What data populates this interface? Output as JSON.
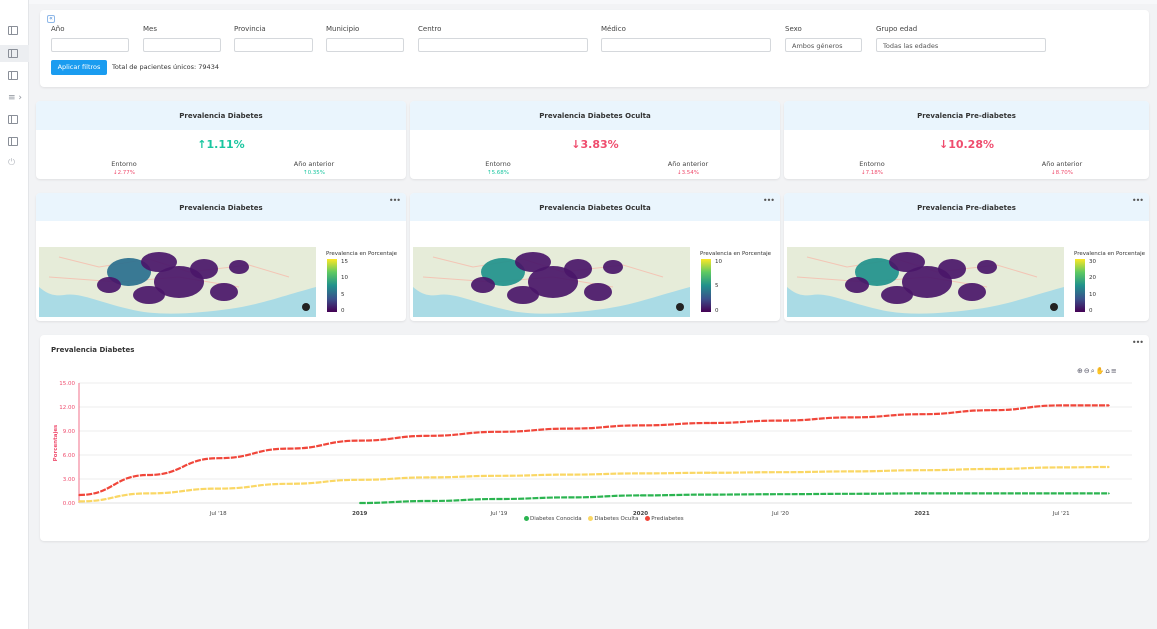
{
  "filters": {
    "anio_label": "Año",
    "mes_label": "Mes",
    "provincia_label": "Provincia",
    "municipio_label": "Municipio",
    "centro_label": "Centro",
    "medico_label": "Médico",
    "sexo_label": "Sexo",
    "sexo_value": "Ambos géneros",
    "grupo_label": "Grupo edad",
    "grupo_value": "Todas las edades",
    "apply_label": "Aplicar filtros",
    "total_text": "Total de pacientes únicos: 79434"
  },
  "kpis": [
    {
      "title": "Prevalencia Diabetes",
      "value": "1.11%",
      "trend": "up",
      "entorno_label": "Entorno",
      "entorno_value": "2.77%",
      "entorno_trend": "down",
      "anterior_label": "Año anterior",
      "anterior_value": "0.35%",
      "anterior_trend": "up"
    },
    {
      "title": "Prevalencia Diabetes Oculta",
      "value": "3.83%",
      "trend": "down",
      "entorno_label": "Entorno",
      "entorno_value": "5.68%",
      "entorno_trend": "up",
      "anterior_label": "Año anterior",
      "anterior_value": "3.54%",
      "anterior_trend": "down"
    },
    {
      "title": "Prevalencia Pre-diabetes",
      "value": "10.28%",
      "trend": "down",
      "entorno_label": "Entorno",
      "entorno_value": "7.18%",
      "entorno_trend": "down",
      "anterior_label": "Año anterior",
      "anterior_value": "8.70%",
      "anterior_trend": "down"
    }
  ],
  "maps": [
    {
      "title": "Prevalencia Diabetes",
      "colorbar_title": "Prevalencia en Porcentaje",
      "ticks": [
        "15",
        "10",
        "5",
        "0"
      ]
    },
    {
      "title": "Prevalencia Diabetes Oculta",
      "colorbar_title": "Prevalencia en Porcentaje",
      "ticks": [
        "10",
        "5",
        "0"
      ]
    },
    {
      "title": "Prevalencia Pre-diabetes",
      "colorbar_title": "Prevalencia en Porcentaje",
      "ticks": [
        "30",
        "20",
        "10",
        "0"
      ]
    }
  ],
  "line_chart_title": "Prevalencia Diabetes",
  "colors": {
    "accent": "#1a9cf0",
    "up": "#1ac6a0",
    "down": "#ef4d6e",
    "predia": "#f0463a",
    "oculta": "#fad764",
    "conocida": "#2bb450"
  },
  "chart_data": {
    "type": "line",
    "title": "",
    "ylabel": "Porcentajes",
    "ylim": [
      0,
      15
    ],
    "yticks": [
      "0.00",
      "3.00",
      "6.00",
      "9.00",
      "12.00",
      "15.00"
    ],
    "xticks": [
      "Jul '18",
      "2019",
      "Jul '19",
      "2020",
      "Jul '20",
      "2021",
      "Jul '21"
    ],
    "x": [
      "2018-01",
      "2018-04",
      "2018-07",
      "2018-10",
      "2019-01",
      "2019-04",
      "2019-07",
      "2019-10",
      "2020-01",
      "2020-04",
      "2020-07",
      "2020-10",
      "2021-01",
      "2021-04",
      "2021-07",
      "2021-09"
    ],
    "series": [
      {
        "name": "Diabetes Conocida",
        "color": "#2bb450",
        "values": [
          null,
          null,
          null,
          null,
          0.0,
          0.25,
          0.5,
          0.7,
          0.95,
          1.05,
          1.1,
          1.15,
          1.2,
          1.2,
          1.2,
          1.2
        ]
      },
      {
        "name": "Diabetes Oculta",
        "color": "#fad764",
        "values": [
          0.2,
          1.2,
          1.8,
          2.4,
          2.9,
          3.2,
          3.4,
          3.55,
          3.7,
          3.78,
          3.85,
          3.95,
          4.1,
          4.25,
          4.45,
          4.5
        ]
      },
      {
        "name": "Prediabetes",
        "color": "#f0463a",
        "values": [
          1.0,
          3.5,
          5.6,
          6.8,
          7.8,
          8.4,
          8.9,
          9.3,
          9.7,
          10.0,
          10.3,
          10.7,
          11.1,
          11.6,
          12.2,
          12.2
        ]
      }
    ],
    "legend_position": "bottom"
  }
}
